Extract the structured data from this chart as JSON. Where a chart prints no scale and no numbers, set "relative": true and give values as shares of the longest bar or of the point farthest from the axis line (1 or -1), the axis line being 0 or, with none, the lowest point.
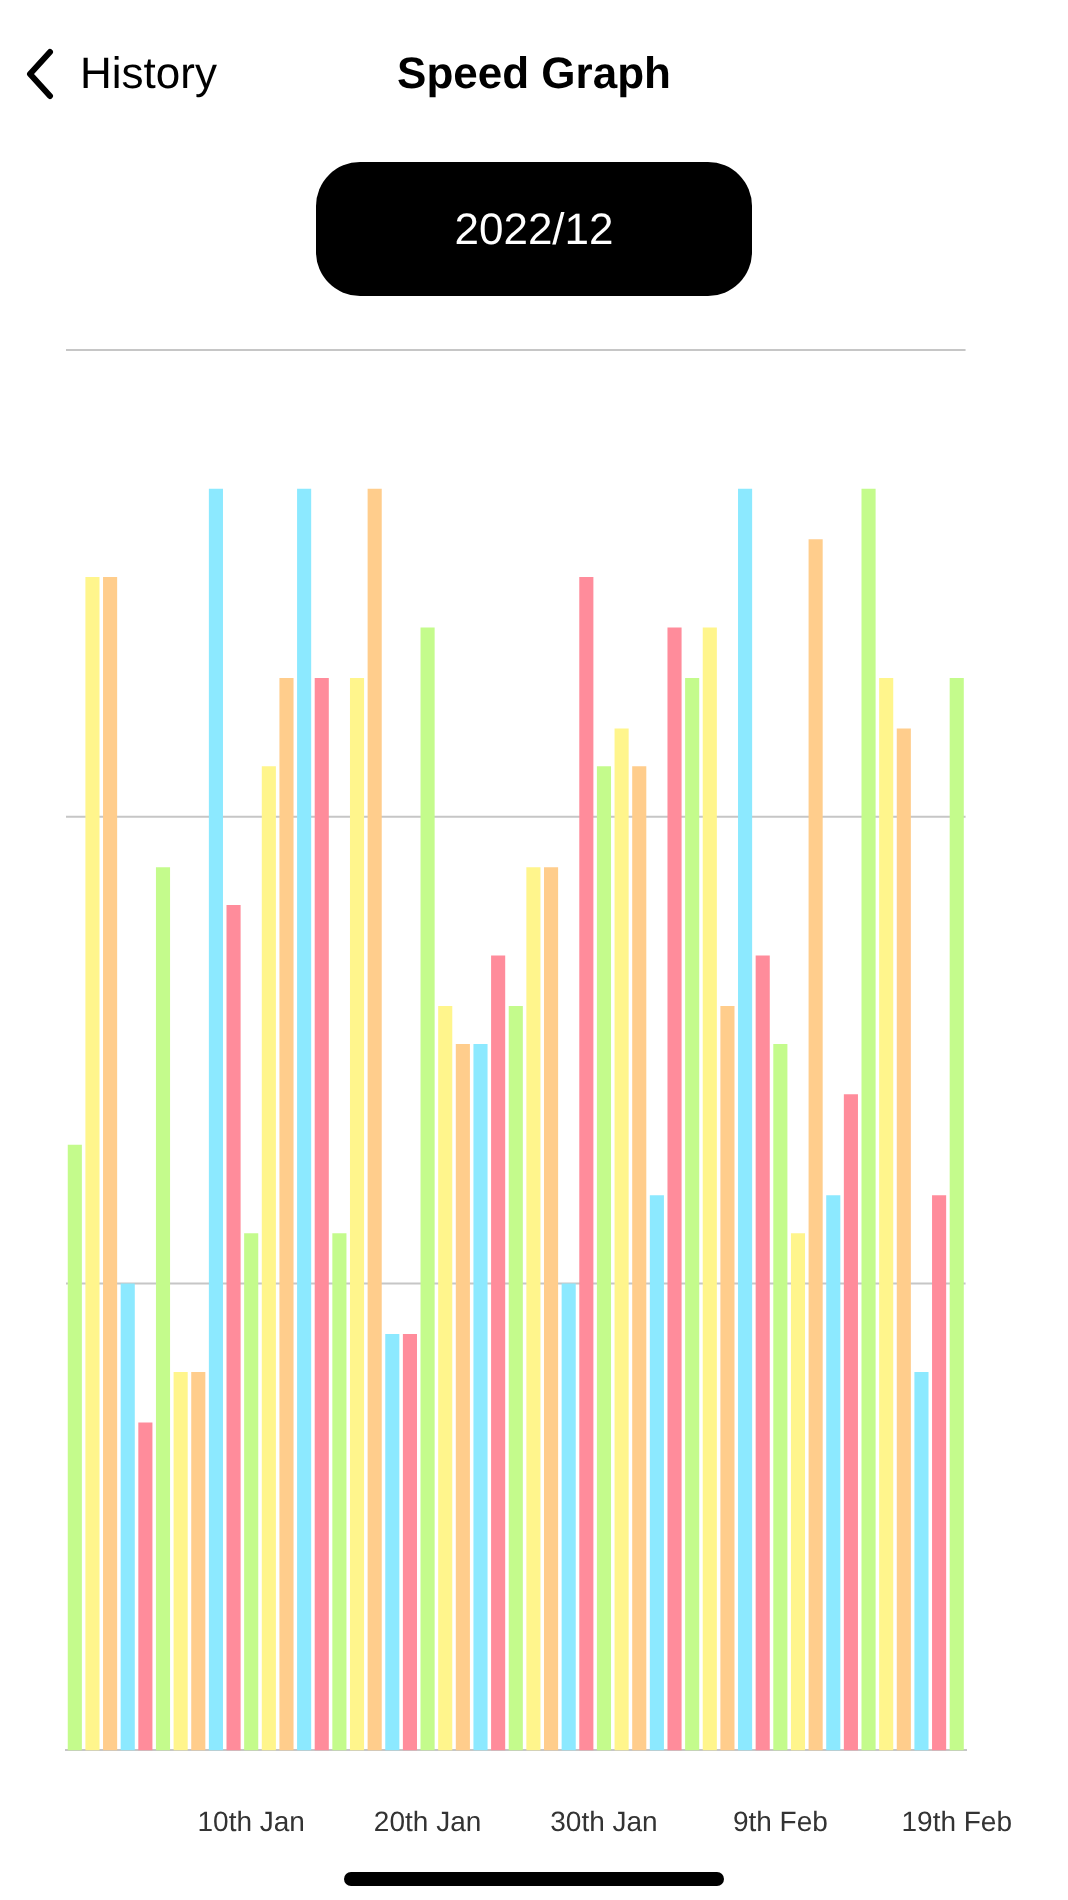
{
  "chart_data": {
    "type": "bar",
    "title": "Speed Graph",
    "subtitle": "2022/12",
    "annotations": [
      "History"
    ],
    "categories": [
      null,
      null,
      null,
      null,
      null,
      null,
      null,
      null,
      null,
      null,
      "10th Jan",
      null,
      null,
      null,
      null,
      null,
      null,
      null,
      null,
      null,
      "20th Jan",
      null,
      null,
      null,
      null,
      null,
      null,
      null,
      null,
      null,
      "30th Jan",
      null,
      null,
      null,
      null,
      null,
      null,
      null,
      null,
      null,
      "9th Feb",
      null,
      null,
      null,
      null,
      null,
      null,
      null,
      null,
      null,
      "19th Feb"
    ],
    "values": [
      0.48,
      0.93,
      0.93,
      0.37,
      0.26,
      0.7,
      0.3,
      0.3,
      1,
      0.67,
      0.41,
      0.78,
      0.85,
      1,
      0.85,
      0.41,
      0.85,
      1,
      0.33,
      0.33,
      0.89,
      0.59,
      0.56,
      0.56,
      0.63,
      0.59,
      0.7,
      0.7,
      0.37,
      0.93,
      0.78,
      0.81,
      0.78,
      0.44,
      0.89,
      0.85,
      0.89,
      0.59,
      1,
      0.63,
      0.56,
      0.41,
      0.96,
      0.44,
      0.52,
      1,
      0.85,
      0.81,
      0.3,
      0.44,
      0.85
    ],
    "colors": [
      "#c4fb8c",
      "#fff58c",
      "#ffcd8c",
      "#8ce9ff",
      "#ff8c9b",
      "#c4fb8c",
      "#fff58c",
      "#ffcd8c",
      "#8ce9ff",
      "#ff8c9b",
      "#c4fb8c",
      "#fff58c",
      "#ffcd8c",
      "#8ce9ff",
      "#ff8c9b",
      "#c4fb8c",
      "#fff58c",
      "#ffcd8c",
      "#8ce9ff",
      "#ff8c9b",
      "#c4fb8c",
      "#fff58c",
      "#ffcd8c",
      "#8ce9ff",
      "#ff8c9b",
      "#c4fb8c",
      "#fff58c",
      "#ffcd8c",
      "#8ce9ff",
      "#ff8c9b",
      "#c4fb8c",
      "#fff58c",
      "#ffcd8c",
      "#8ce9ff",
      "#ff8c9b",
      "#c4fb8c",
      "#fff58c",
      "#ffcd8c",
      "#8ce9ff",
      "#ff8c9b",
      "#c4fb8c",
      "#fff58c",
      "#ffcd8c",
      "#8ce9ff",
      "#ff8c9b",
      "#c4fb8c",
      "#fff58c",
      "#ffcd8c",
      "#8ce9ff",
      "#ff8c9b",
      "#c4fb8c"
    ],
    "relative": true,
    "ref_lines": [
      {
        "axis": "y",
        "value": 0.37,
        "color": "#c6c6c6"
      },
      {
        "axis": "y",
        "value": 0.74,
        "color": "#c6c6c6"
      },
      {
        "axis": "y",
        "value": 1.11,
        "color": "#c6c6c6"
      }
    ]
  }
}
